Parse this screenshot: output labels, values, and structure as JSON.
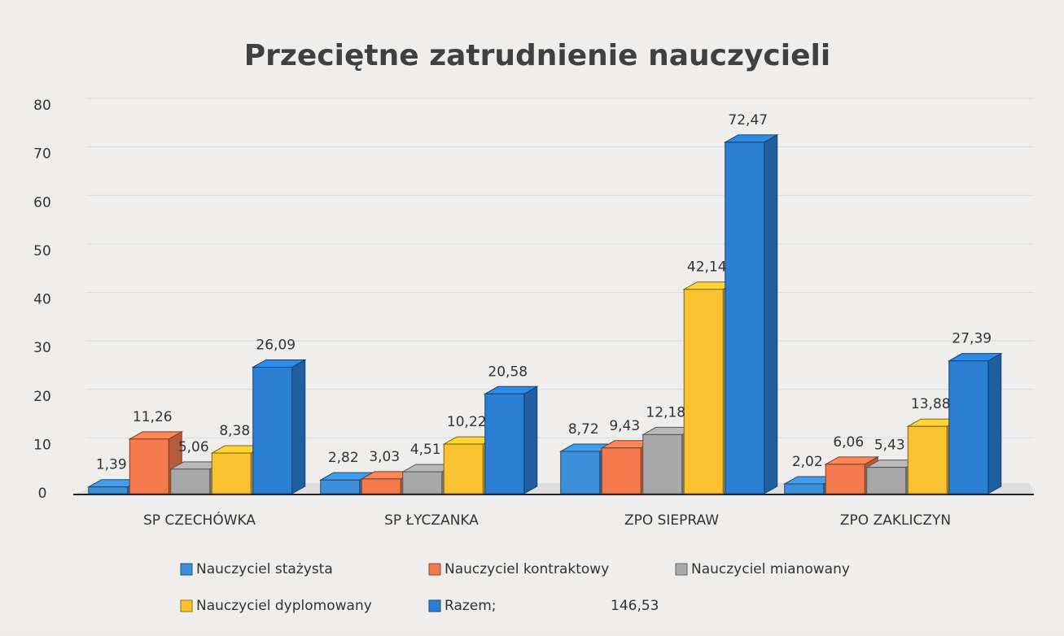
{
  "chart_data": {
    "type": "bar3d",
    "title": "Przeciętne zatrudnienie nauczycieli",
    "categories": [
      "SP CZECHÓWKA",
      "SP ŁYCZANKA",
      "ZPO SIEPRAW",
      "ZPO ZAKLICZYN"
    ],
    "series": [
      {
        "name": "Nauczyciel stażysta",
        "color": "#3d8fd8",
        "values": [
          1.39,
          2.82,
          8.72,
          2.02
        ],
        "value_labels": [
          "1,39",
          "2,82",
          "8,72",
          "2,02"
        ]
      },
      {
        "name": "Nauczyciel kontraktowy",
        "color": "#f47a4e",
        "values": [
          11.26,
          3.03,
          9.43,
          6.06
        ],
        "value_labels": [
          "11,26",
          "3,03",
          "9,43",
          "6,06"
        ]
      },
      {
        "name": "Nauczyciel mianowany",
        "color": "#a8a8a8",
        "values": [
          5.06,
          4.51,
          12.18,
          5.43
        ],
        "value_labels": [
          "5,06",
          "4,51",
          "12,18",
          "5,43"
        ]
      },
      {
        "name": "Nauczyciel dyplomowany",
        "color": "#f9c22e",
        "values": [
          8.38,
          10.22,
          42.14,
          13.88
        ],
        "value_labels": [
          "8,38",
          "10,22",
          "42,14",
          "13,88"
        ]
      },
      {
        "name": "Razem;",
        "color": "#2a7fd4",
        "values": [
          26.09,
          20.58,
          72.47,
          27.39
        ],
        "value_labels": [
          "26,09",
          "20,58",
          "72,47",
          "27,39"
        ]
      }
    ],
    "annotation": "146,53",
    "ylim": [
      0,
      80
    ],
    "yticks": [
      0,
      10,
      20,
      30,
      40,
      50,
      60,
      70,
      80
    ],
    "grid": true,
    "legend": "bottom"
  }
}
